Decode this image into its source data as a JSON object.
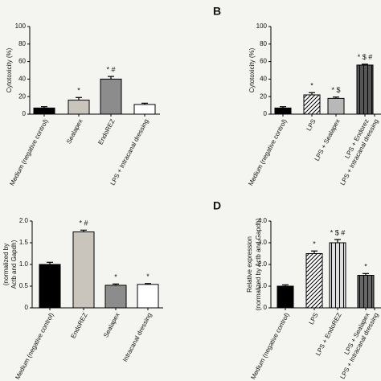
{
  "chart_data": [
    {
      "type": "bar",
      "ylabel": [
        "Cytotoxicity (%)"
      ],
      "categories": [
        "Medium (negative control)",
        "Sealapex",
        "EndoREZ",
        "LPS + Intracanal dressing"
      ],
      "values": [
        7,
        16,
        40,
        11
      ],
      "errors": [
        1.5,
        3,
        3,
        1.5
      ],
      "annotations": [
        null,
        "*",
        "* #",
        null
      ],
      "colors": [
        "#000000",
        "#c9c5bd",
        "#8c8c8c",
        "#ffffff"
      ],
      "patterns": [
        "solid",
        "solid",
        "solid",
        "solid"
      ],
      "ylim": [
        0,
        100
      ],
      "yticks": [
        0,
        20,
        40,
        60,
        80,
        100
      ]
    },
    {
      "type": "bar",
      "panel": "B",
      "ylabel": [
        "Cytotoxicity (%)"
      ],
      "categories": [
        "Medium (negative control)",
        "LPS",
        "LPS + Sealapex",
        "LPS + Endorez",
        "LPS + Intracanal dressing"
      ],
      "values": [
        7,
        22,
        18,
        56,
        null
      ],
      "errors": [
        1.5,
        2.5,
        1.5,
        1,
        null
      ],
      "annotations": [
        null,
        "*",
        "* $",
        "* $ #",
        null
      ],
      "colors": [
        "#000000",
        "#ffffff",
        "#b8b8b8",
        "#555555",
        null
      ],
      "patterns": [
        "solid",
        "diagonal",
        "solid",
        "vertical",
        null
      ],
      "ylim": [
        0,
        100
      ],
      "yticks": [
        0,
        20,
        40,
        60,
        80,
        100
      ]
    },
    {
      "type": "bar",
      "ylabel": [
        "(normalized by",
        "Actb and Gapdh)"
      ],
      "categories": [
        "Medium (negative control)",
        "EndoREZ",
        "Sealapex",
        "Intracanal dressing"
      ],
      "values": [
        1.0,
        1.75,
        0.52,
        0.54
      ],
      "errors": [
        0.05,
        0.04,
        0.03,
        0.02
      ],
      "annotations": [
        null,
        "* #",
        "*",
        "*"
      ],
      "colors": [
        "#000000",
        "#c9c5bd",
        "#8c8c8c",
        "#ffffff"
      ],
      "patterns": [
        "solid",
        "solid",
        "solid",
        "solid"
      ],
      "ylim": [
        0,
        2
      ],
      "yticks": [
        0,
        0.5,
        {
          "value": 1,
          "label": "1.0"
        },
        1.5,
        {
          "value": 2,
          "label": "2.0"
        }
      ]
    },
    {
      "type": "bar",
      "panel": "D",
      "ylabel": [
        "Relative expression",
        "(normalized by Actb and Gapdh)"
      ],
      "categories": [
        "Medium (negative control)",
        "LPS",
        "LPS + EndoREZ",
        "LPS + Sealapex",
        "LPS + Intracanal dressing"
      ],
      "values": [
        1.0,
        2.5,
        3.0,
        1.5,
        null
      ],
      "errors": [
        0.06,
        0.12,
        0.15,
        0.08,
        null
      ],
      "annotations": [
        null,
        "*",
        "* $ #",
        "*",
        null
      ],
      "colors": [
        "#000000",
        "#ffffff",
        "#dddddd",
        "#666666",
        null
      ],
      "patterns": [
        "solid",
        "diagonal",
        "vertical",
        "vertical",
        null
      ],
      "ylim": [
        0,
        4
      ],
      "yticks": [
        0,
        {
          "value": 1,
          "label": "1.0"
        },
        {
          "value": 2,
          "label": "2.0"
        },
        {
          "value": 3,
          "label": "3.0"
        },
        {
          "value": 4,
          "label": "4.0"
        }
      ]
    }
  ]
}
